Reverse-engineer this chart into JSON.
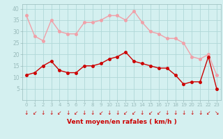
{
  "xlabel": "Vent moyen/en rafales ( km/h )",
  "hours": [
    0,
    1,
    2,
    3,
    4,
    5,
    6,
    7,
    8,
    9,
    10,
    11,
    12,
    13,
    14,
    15,
    16,
    17,
    18,
    19,
    20,
    21,
    22,
    23
  ],
  "rafales": [
    37,
    28,
    26,
    35,
    30,
    29,
    29,
    34,
    34,
    35,
    37,
    37,
    35,
    39,
    34,
    30,
    29,
    27,
    27,
    25,
    19,
    18,
    20,
    11
  ],
  "moyen": [
    11,
    12,
    15,
    17,
    13,
    12,
    12,
    15,
    15,
    16,
    18,
    19,
    21,
    17,
    16,
    15,
    14,
    14,
    11,
    7,
    8,
    8,
    19,
    5
  ],
  "bg_color": "#d4f0f0",
  "grid_color": "#b0d8d8",
  "rafales_color": "#f0a0a8",
  "moyen_color": "#cc0000",
  "tick_color": "#cc0000",
  "ylim": [
    0,
    42
  ],
  "yticks": [
    5,
    10,
    15,
    20,
    25,
    30,
    35,
    40
  ],
  "marker_size": 2.5,
  "line_width": 1.0,
  "arrow_chars": [
    "↓",
    "↙",
    "↓",
    "↓",
    "↙",
    "↓",
    "↙",
    "↓",
    "↓",
    "↙",
    "↓",
    "↓",
    "↙",
    "↙",
    "↓",
    "↙",
    "↙",
    "↓",
    "↓",
    "↓",
    "↓",
    "↓",
    "↙",
    "↘"
  ]
}
